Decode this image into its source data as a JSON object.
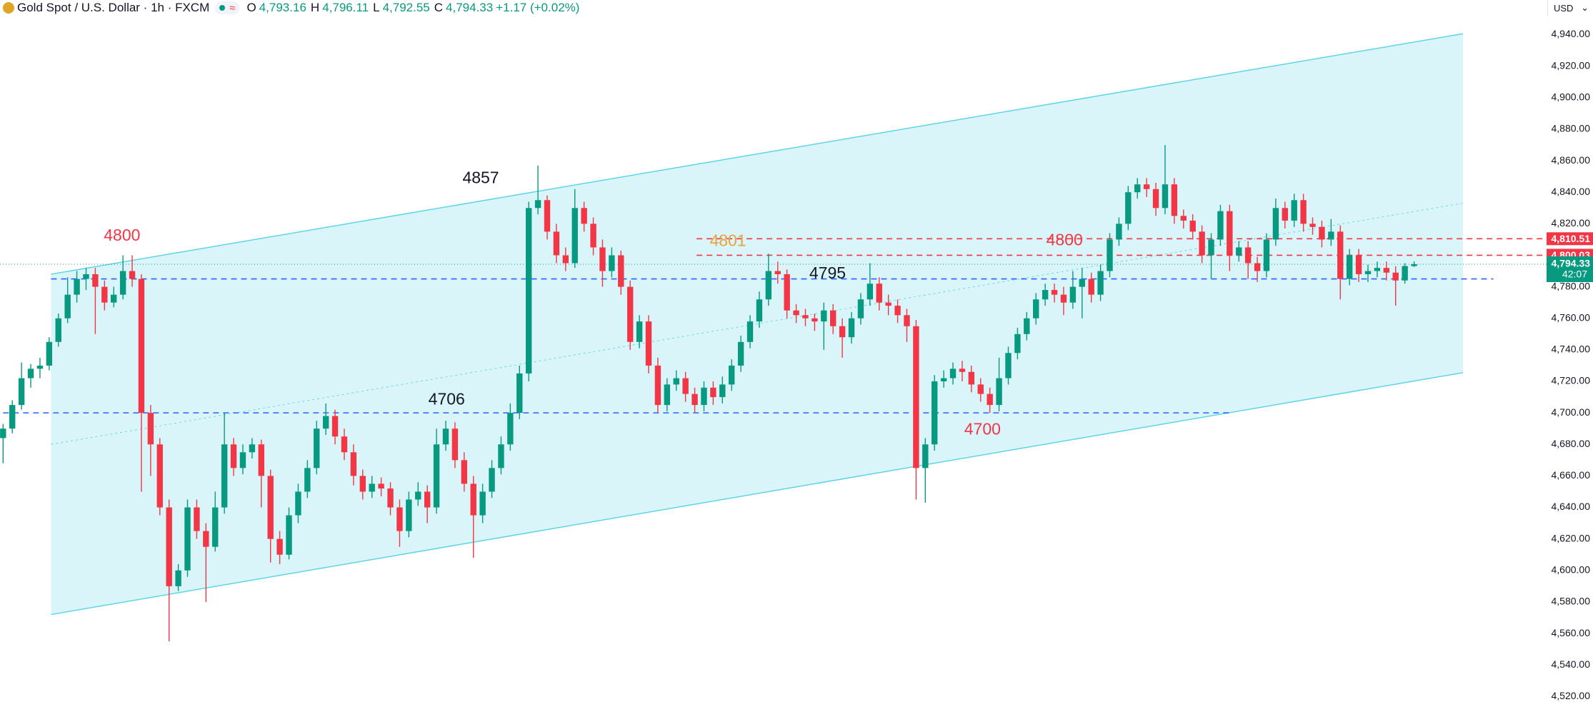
{
  "header": {
    "symbol": "Gold Spot / U.S. Dollar · 1h · FXCM",
    "ohlc": [
      {
        "label": "O",
        "value": "4,793.16"
      },
      {
        "label": "H",
        "value": "4,796.11"
      },
      {
        "label": "L",
        "value": "4,792.55"
      },
      {
        "label": "C",
        "value": "4,794.33"
      }
    ],
    "change": "+1.17 (+0.02%)",
    "currency": "USD"
  },
  "chart_data": {
    "type": "candlestick",
    "up_color": "#089981",
    "down_color": "#f23645",
    "open": [
      4684,
      4690,
      4705,
      4722,
      4728,
      4730,
      4745,
      4760,
      4775,
      4785,
      4788,
      4780,
      4770,
      4775,
      4790,
      4785,
      4700,
      4680,
      4640,
      4590,
      4600,
      4640,
      4625,
      4615,
      4640,
      4680,
      4665,
      4675,
      4680,
      4660,
      4620,
      4610,
      4635,
      4650,
      4665,
      4690,
      4698,
      4685,
      4675,
      4660,
      4650,
      4655,
      4652,
      4640,
      4625,
      4645,
      4650,
      4640,
      4680,
      4690,
      4670,
      4655,
      4635,
      4650,
      4665,
      4680,
      4700,
      4725,
      4830,
      4835,
      4815,
      4800,
      4795,
      4830,
      4820,
      4805,
      4790,
      4800,
      4780,
      4745,
      4758,
      4730,
      4705,
      4718,
      4722,
      4712,
      4705,
      4716,
      4710,
      4718,
      4730,
      4745,
      4758,
      4772,
      4790,
      4788,
      4765,
      4762,
      4760,
      4758,
      4765,
      4755,
      4748,
      4760,
      4772,
      4782,
      4770,
      4768,
      4762,
      4755,
      4665,
      4680,
      4720,
      4722,
      4728,
      4726,
      4718,
      4712,
      4705,
      4722,
      4738,
      4750,
      4760,
      4772,
      4778,
      4775,
      4770,
      4780,
      4785,
      4775,
      4790,
      4810,
      4820,
      4840,
      4845,
      4842,
      4830,
      4845,
      4825,
      4822,
      4815,
      4800,
      4810,
      4828,
      4800,
      4805,
      4795,
      4790,
      4810,
      4830,
      4822,
      4835,
      4820,
      4818,
      4810,
      4815,
      4785,
      4800,
      4788,
      4790,
      4792,
      4789,
      4784,
      4793.16
    ],
    "high": [
      4693,
      4708,
      4732,
      4731,
      4735,
      4748,
      4763,
      4786,
      4790,
      4792,
      4792,
      4784,
      4780,
      4800,
      4800,
      4788,
      4705,
      4684,
      4645,
      4604,
      4645,
      4645,
      4630,
      4650,
      4700,
      4684,
      4680,
      4684,
      4683,
      4664,
      4625,
      4640,
      4655,
      4670,
      4695,
      4706,
      4702,
      4690,
      4680,
      4664,
      4660,
      4659,
      4656,
      4645,
      4650,
      4656,
      4654,
      4690,
      4695,
      4694,
      4675,
      4660,
      4655,
      4670,
      4685,
      4706,
      4730,
      4834,
      4857,
      4838,
      4820,
      4805,
      4842,
      4834,
      4824,
      4810,
      4805,
      4803,
      4784,
      4762,
      4762,
      4735,
      4722,
      4727,
      4726,
      4716,
      4720,
      4720,
      4723,
      4734,
      4749,
      4762,
      4777,
      4801,
      4796,
      4791,
      4769,
      4766,
      4763,
      4770,
      4769,
      4760,
      4764,
      4776,
      4795,
      4786,
      4775,
      4772,
      4766,
      4759,
      4684,
      4724,
      4727,
      4732,
      4733,
      4730,
      4722,
      4716,
      4735,
      4742,
      4754,
      4764,
      4776,
      4782,
      4782,
      4780,
      4790,
      4792,
      4789,
      4794,
      4814,
      4824,
      4844,
      4849,
      4849,
      4846,
      4870,
      4849,
      4829,
      4826,
      4819,
      4814,
      4832,
      4832,
      4809,
      4809,
      4799,
      4814,
      4836,
      4834,
      4839,
      4839,
      4824,
      4822,
      4823,
      4819,
      4804,
      4804,
      4794,
      4796,
      4796,
      4793,
      4795,
      4796.11
    ],
    "low": [
      4668,
      4687,
      4702,
      4716,
      4722,
      4727,
      4742,
      4757,
      4770,
      4778,
      4750,
      4765,
      4767,
      4772,
      4780,
      4650,
      4660,
      4635,
      4555,
      4587,
      4596,
      4620,
      4580,
      4612,
      4636,
      4660,
      4661,
      4671,
      4640,
      4605,
      4604,
      4607,
      4630,
      4646,
      4661,
      4686,
      4680,
      4670,
      4654,
      4645,
      4646,
      4647,
      4635,
      4615,
      4621,
      4641,
      4630,
      4636,
      4676,
      4665,
      4650,
      4608,
      4630,
      4646,
      4661,
      4676,
      4696,
      4720,
      4826,
      4810,
      4795,
      4790,
      4792,
      4815,
      4800,
      4780,
      4786,
      4775,
      4740,
      4741,
      4725,
      4700,
      4701,
      4714,
      4707,
      4700,
      4701,
      4705,
      4706,
      4714,
      4726,
      4741,
      4754,
      4768,
      4782,
      4760,
      4757,
      4755,
      4752,
      4740,
      4750,
      4735,
      4744,
      4756,
      4768,
      4765,
      4762,
      4757,
      4745,
      4645,
      4643,
      4676,
      4716,
      4718,
      4720,
      4713,
      4707,
      4700,
      4701,
      4718,
      4734,
      4746,
      4756,
      4768,
      4770,
      4762,
      4766,
      4760,
      4770,
      4771,
      4786,
      4806,
      4816,
      4836,
      4837,
      4825,
      4826,
      4820,
      4817,
      4810,
      4795,
      4785,
      4806,
      4790,
      4796,
      4785,
      4783,
      4786,
      4806,
      4817,
      4818,
      4815,
      4813,
      4805,
      4806,
      4772,
      4781,
      4783,
      4783,
      4786,
      4784,
      4768,
      4782,
      4792.55
    ],
    "close": [
      4690,
      4705,
      4722,
      4728,
      4730,
      4745,
      4760,
      4775,
      4785,
      4788,
      4780,
      4770,
      4775,
      4790,
      4785,
      4700,
      4680,
      4640,
      4590,
      4600,
      4640,
      4625,
      4615,
      4640,
      4680,
      4665,
      4675,
      4680,
      4660,
      4620,
      4610,
      4635,
      4650,
      4665,
      4690,
      4698,
      4685,
      4675,
      4660,
      4650,
      4655,
      4652,
      4640,
      4625,
      4645,
      4650,
      4640,
      4680,
      4690,
      4670,
      4655,
      4635,
      4650,
      4665,
      4680,
      4700,
      4725,
      4830,
      4835,
      4815,
      4800,
      4795,
      4830,
      4820,
      4805,
      4790,
      4800,
      4780,
      4745,
      4758,
      4730,
      4705,
      4718,
      4722,
      4712,
      4705,
      4716,
      4710,
      4718,
      4730,
      4745,
      4758,
      4772,
      4790,
      4788,
      4765,
      4762,
      4760,
      4758,
      4765,
      4755,
      4748,
      4760,
      4772,
      4782,
      4770,
      4768,
      4762,
      4755,
      4665,
      4680,
      4720,
      4722,
      4728,
      4726,
      4718,
      4712,
      4705,
      4722,
      4738,
      4750,
      4760,
      4772,
      4778,
      4775,
      4770,
      4780,
      4785,
      4775,
      4790,
      4810,
      4820,
      4840,
      4845,
      4842,
      4830,
      4845,
      4825,
      4822,
      4815,
      4800,
      4810,
      4828,
      4800,
      4805,
      4795,
      4790,
      4810,
      4830,
      4822,
      4835,
      4820,
      4818,
      4810,
      4815,
      4785,
      4800,
      4788,
      4790,
      4792,
      4789,
      4784,
      4793.16,
      4794.33
    ],
    "ylim": [
      4507,
      4962
    ],
    "yticks": [
      {
        "value": 4520,
        "label": "4,520.00"
      },
      {
        "value": 4540,
        "label": "4,540.00"
      },
      {
        "value": 4560,
        "label": "4,560.00"
      },
      {
        "value": 4580,
        "label": "4,580.00"
      },
      {
        "value": 4600,
        "label": "4,600.00"
      },
      {
        "value": 4620,
        "label": "4,620.00"
      },
      {
        "value": 4640,
        "label": "4,640.00"
      },
      {
        "value": 4660,
        "label": "4,660.00"
      },
      {
        "value": 4680,
        "label": "4,680.00"
      },
      {
        "value": 4700,
        "label": "4,700.00"
      },
      {
        "value": 4720,
        "label": "4,720.00"
      },
      {
        "value": 4740,
        "label": "4,740.00"
      },
      {
        "value": 4760,
        "label": "4,760.00"
      },
      {
        "value": 4780,
        "label": "4,780.00"
      },
      {
        "value": 4800,
        "label": "4,800.00"
      },
      {
        "value": 4820,
        "label": "4,820.00"
      },
      {
        "value": 4840,
        "label": "4,840.00"
      },
      {
        "value": 4860,
        "label": "4,860.00"
      },
      {
        "value": 4880,
        "label": "4,880.00"
      },
      {
        "value": 4900,
        "label": "4,900.00"
      },
      {
        "value": 4920,
        "label": "4,920.00"
      },
      {
        "value": 4940,
        "label": "4,940.00"
      }
    ],
    "grid": false,
    "channel": {
      "from": 5.2,
      "to": 158.3,
      "upper": [
        4788,
        4940.6
      ],
      "lower": [
        4572,
        4725.5
      ],
      "color": "#00bcd4"
    },
    "levels": [
      {
        "value": 4810.51,
        "label": "4,810.51",
        "color": "#f23645",
        "from": 75.2
      },
      {
        "value": 4800.03,
        "label": "4,800.03",
        "color": "#f23645",
        "from": 75.2
      },
      {
        "value": 4785,
        "color": "#2962ff",
        "from": 5.2,
        "to": 161.6
      },
      {
        "value": 4700,
        "color": "#2962ff",
        "from": 0,
        "to": 133
      }
    ],
    "last_price": {
      "value": 4794.33,
      "label": "4,794.33",
      "countdown": "42:07",
      "color": "#089981"
    },
    "annotations": [
      {
        "text": "4800",
        "x": 12.9,
        "y": 4812,
        "color": "#f23645"
      },
      {
        "text": "4857",
        "x": 51.8,
        "y": 4848.5,
        "color": "#131722"
      },
      {
        "text": "4706",
        "x": 48.1,
        "y": 4708,
        "color": "#131722"
      },
      {
        "text": "4801",
        "x": 78.6,
        "y": 4808.6,
        "color": "#e8a33d"
      },
      {
        "text": "4795",
        "x": 89.4,
        "y": 4788,
        "color": "#131722"
      },
      {
        "text": "4800",
        "x": 115.1,
        "y": 4809,
        "color": "#f23645"
      },
      {
        "text": "4700",
        "x": 106.2,
        "y": 4689,
        "color": "#f23645"
      }
    ]
  }
}
